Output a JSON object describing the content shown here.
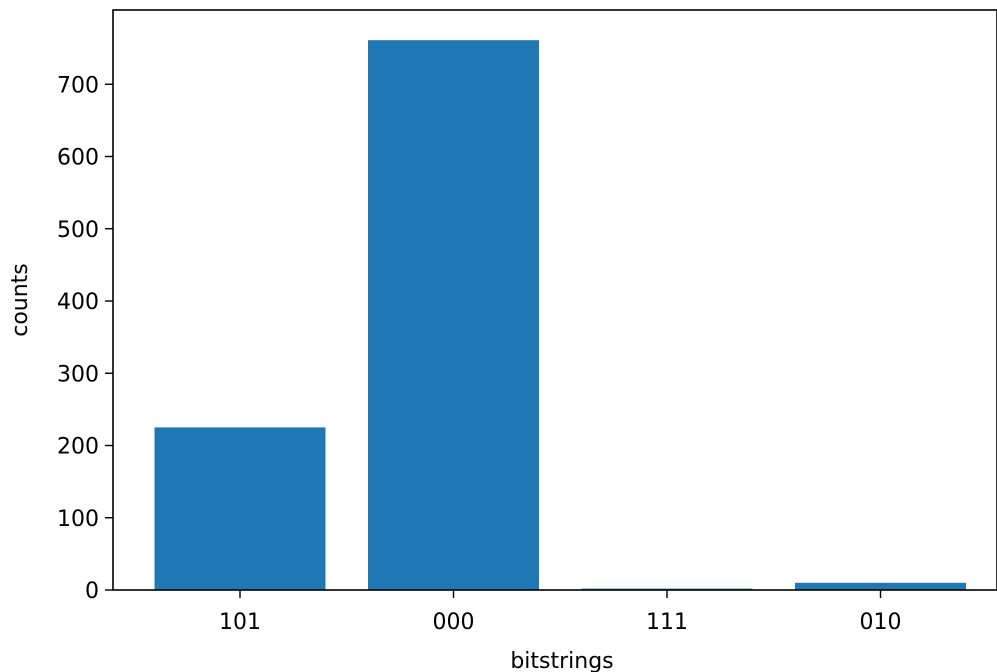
{
  "chart_data": {
    "type": "bar",
    "title": "",
    "xlabel": "bitstrings",
    "ylabel": "counts",
    "categories": [
      "101",
      "000",
      "111",
      "010"
    ],
    "values": [
      225,
      761,
      2,
      10
    ],
    "ylim": [
      0,
      800
    ],
    "yticks": [
      0,
      100,
      200,
      300,
      400,
      500,
      600,
      700
    ],
    "bar_color": "#1f77b4",
    "grid": false,
    "legend": "none"
  }
}
